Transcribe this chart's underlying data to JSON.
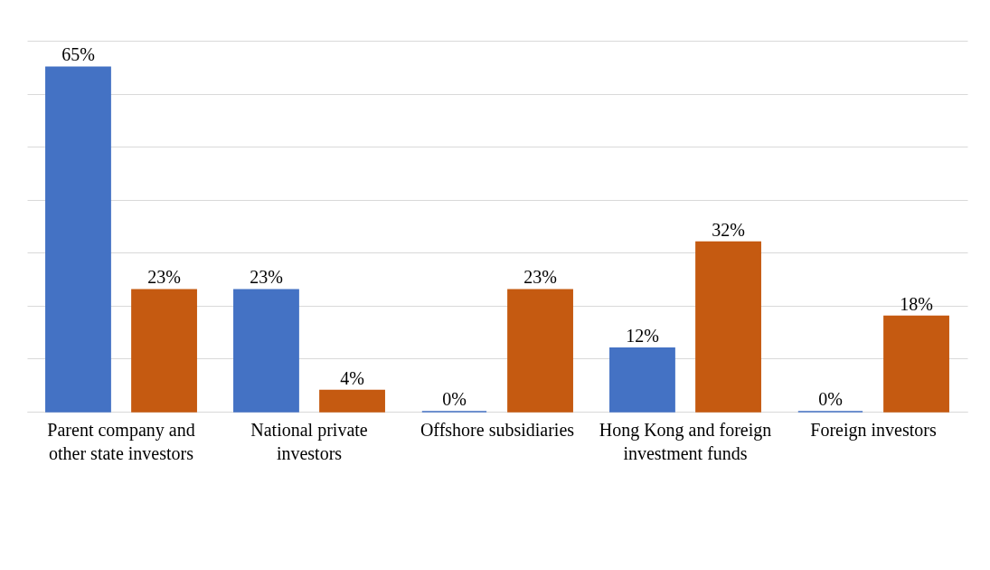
{
  "chart_data": {
    "type": "bar",
    "categories": [
      "Parent company and other state investors",
      "National private investors",
      "Offshore subsidiaries",
      "Hong Kong and foreign investment funds",
      "Foreign investors"
    ],
    "series": [
      {
        "color": "#4472c4",
        "values": [
          65,
          23,
          0,
          12,
          0
        ],
        "value_labels": [
          "65%",
          "23%",
          "0%",
          "12%",
          "0%"
        ]
      },
      {
        "color": "#c55a11",
        "values": [
          23,
          4,
          23,
          32,
          18
        ],
        "value_labels": [
          "23%",
          "4%",
          "23%",
          "32%",
          "18%"
        ]
      }
    ],
    "ylim": [
      0,
      70
    ],
    "yticks": [
      {
        "value": 0,
        "label": null
      },
      {
        "value": 10,
        "label": null
      },
      {
        "value": 20,
        "label": null
      },
      {
        "value": 30,
        "label": null
      },
      {
        "value": 40,
        "label": null
      },
      {
        "value": 50,
        "label": null
      },
      {
        "value": 60,
        "label": null
      },
      {
        "value": 70,
        "label": null
      }
    ],
    "grid": "y",
    "tick_labels": "x"
  }
}
